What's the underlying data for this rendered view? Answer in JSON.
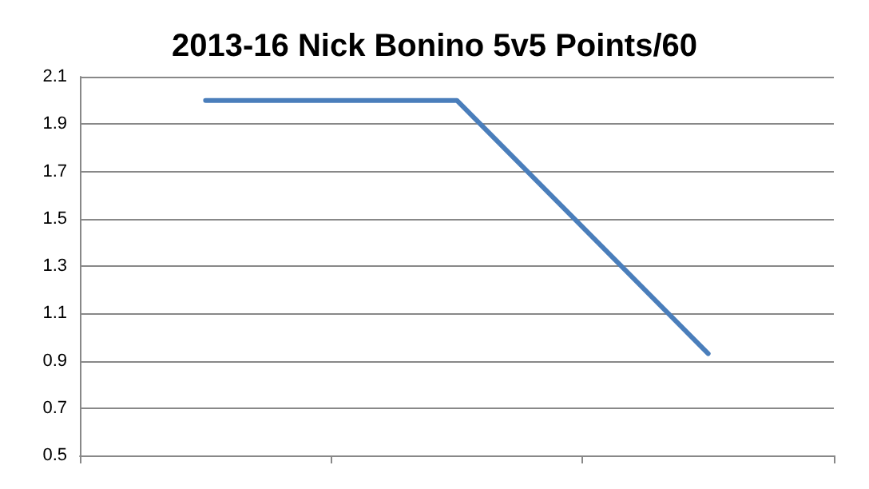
{
  "chart_data": {
    "type": "line",
    "title": "2013-16 Nick Bonino 5v5 Points/60",
    "categories": [
      null,
      null,
      null
    ],
    "series": [
      {
        "color": "#4a7ebb",
        "values": [
          2.0,
          2.0,
          0.93
        ]
      }
    ],
    "ylim": [
      0.5,
      2.1
    ],
    "yticks": [
      0.5,
      0.7,
      0.9,
      1.1,
      1.3,
      1.5,
      1.7,
      1.9,
      2.1
    ],
    "grid": "y",
    "tick_labels": "y",
    "marker": "none",
    "line_style": "solid"
  }
}
